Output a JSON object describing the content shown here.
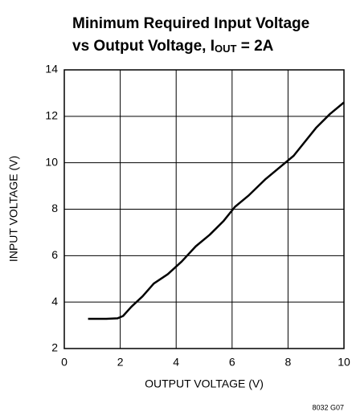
{
  "chart_data": {
    "type": "line",
    "title": {
      "line1": "Minimum Required Input Voltage",
      "line2": [
        "vs Output Voltage, I",
        "OUT",
        " = 2A"
      ]
    },
    "x_label": "OUTPUT VOLTAGE (V)",
    "y_label": "INPUT VOLTAGE (V)",
    "footnote": "8032 G07",
    "x": [
      0.85,
      1.5,
      1.9,
      2.1,
      2.4,
      2.8,
      3.2,
      3.7,
      4.2,
      4.7,
      5.2,
      5.7,
      6.1,
      6.6,
      7.2,
      8.2,
      9.0,
      9.5,
      10
    ],
    "series": [
      {
        "color": "#000000",
        "values": [
          3.28,
          3.28,
          3.3,
          3.4,
          3.8,
          4.25,
          4.8,
          5.2,
          5.75,
          6.4,
          6.9,
          7.5,
          8.1,
          8.6,
          9.3,
          10.3,
          11.5,
          12.1,
          12.6
        ]
      }
    ],
    "xlim": [
      0,
      10
    ],
    "xticks": [
      0,
      2,
      4,
      6,
      8,
      10
    ],
    "ylim": [
      2,
      14
    ],
    "yticks": [
      2,
      4,
      6,
      8,
      10,
      12,
      14
    ],
    "grid": true
  }
}
